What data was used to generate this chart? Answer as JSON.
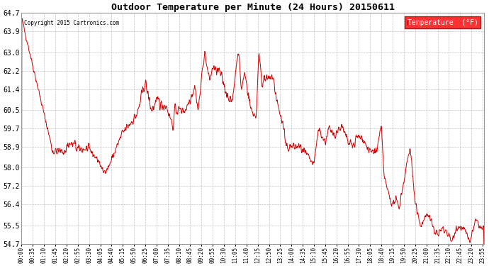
{
  "title": "Outdoor Temperature per Minute (24 Hours) 20150611",
  "copyright_text": "Copyright 2015 Cartronics.com",
  "legend_label": "Temperature  (°F)",
  "line_color": "#cc0000",
  "background_color": "#ffffff",
  "grid_color": "#bbbbbb",
  "ylim": [
    54.7,
    64.7
  ],
  "yticks": [
    54.7,
    55.5,
    56.4,
    57.2,
    58.0,
    58.9,
    59.7,
    60.5,
    61.4,
    62.2,
    63.0,
    63.9,
    64.7
  ],
  "xlabel_interval_minutes": 35,
  "total_minutes": 1440
}
